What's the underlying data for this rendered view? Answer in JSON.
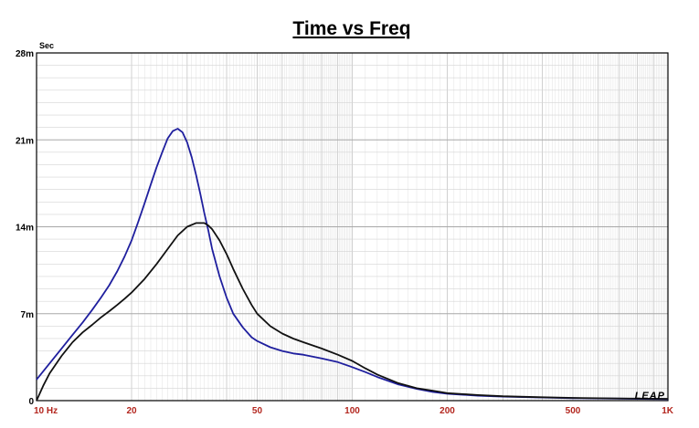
{
  "chart_data": {
    "type": "line",
    "title": "Time vs Freq",
    "ylabel": "Sec",
    "xscale": "log",
    "xlim": [
      10,
      1000
    ],
    "ylim": [
      0,
      28
    ],
    "grid": true,
    "x_ticks": [
      {
        "value": 10,
        "label": "10  Hz"
      },
      {
        "value": 20,
        "label": "20"
      },
      {
        "value": 50,
        "label": "50"
      },
      {
        "value": 100,
        "label": "100"
      },
      {
        "value": 200,
        "label": "200"
      },
      {
        "value": 500,
        "label": "500"
      },
      {
        "value": 1000,
        "label": "1K"
      }
    ],
    "y_ticks": [
      {
        "value": 0,
        "label": "0"
      },
      {
        "value": 7,
        "label": "7m"
      },
      {
        "value": 14,
        "label": "14m"
      },
      {
        "value": 21,
        "label": "21m"
      },
      {
        "value": 28,
        "label": "28m"
      }
    ],
    "series": [
      {
        "color": "#1f1f9e",
        "x": [
          10,
          11,
          12,
          13,
          14,
          15,
          16,
          17,
          18,
          19,
          20,
          21,
          22,
          23,
          24,
          25,
          26,
          27,
          28,
          29,
          30,
          31,
          32,
          33,
          34,
          35,
          36,
          38,
          40,
          42,
          45,
          48,
          50,
          55,
          60,
          65,
          70,
          80,
          90,
          100,
          110,
          120,
          140,
          160,
          180,
          200,
          250,
          300,
          400,
          500,
          700,
          1000
        ],
        "y": [
          1.7,
          3.0,
          4.2,
          5.3,
          6.3,
          7.3,
          8.3,
          9.3,
          10.4,
          11.6,
          12.9,
          14.4,
          15.9,
          17.4,
          18.8,
          20.0,
          21.1,
          21.7,
          21.9,
          21.6,
          20.8,
          19.6,
          18.2,
          16.7,
          15.1,
          13.7,
          12.2,
          10.0,
          8.3,
          7.0,
          5.9,
          5.1,
          4.8,
          4.3,
          4.0,
          3.8,
          3.7,
          3.4,
          3.1,
          2.7,
          2.3,
          1.9,
          1.3,
          0.95,
          0.7,
          0.55,
          0.4,
          0.32,
          0.25,
          0.2,
          0.16,
          0.12
        ]
      },
      {
        "color": "#111111",
        "x": [
          10,
          10.5,
          11,
          12,
          13,
          14,
          15,
          16,
          17,
          18,
          19,
          20,
          22,
          24,
          26,
          28,
          30,
          32,
          34,
          35,
          36,
          38,
          40,
          42,
          45,
          48,
          50,
          55,
          60,
          65,
          70,
          80,
          90,
          100,
          110,
          120,
          140,
          160,
          180,
          200,
          250,
          300,
          400,
          500,
          700,
          1000
        ],
        "y": [
          0.0,
          1.2,
          2.2,
          3.6,
          4.7,
          5.5,
          6.1,
          6.7,
          7.2,
          7.7,
          8.2,
          8.7,
          9.8,
          11.0,
          12.2,
          13.3,
          14.0,
          14.3,
          14.3,
          14.1,
          13.8,
          12.9,
          11.8,
          10.6,
          9.0,
          7.7,
          7.0,
          6.0,
          5.4,
          5.0,
          4.7,
          4.2,
          3.7,
          3.2,
          2.6,
          2.1,
          1.4,
          1.0,
          0.8,
          0.6,
          0.45,
          0.35,
          0.27,
          0.22,
          0.18,
          0.15
        ]
      }
    ]
  },
  "logo_text": "LEAP"
}
